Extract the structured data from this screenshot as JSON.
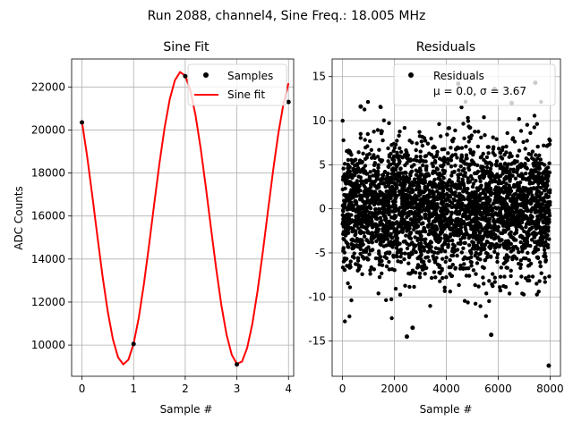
{
  "figure": {
    "suptitle": "Run 2088, channel4, Sine Freq.: 18.005 MHz"
  },
  "chart_data": [
    {
      "type": "line",
      "title": "Sine Fit",
      "xlabel": "Sample #",
      "ylabel": "ADC Counts",
      "xlim": [
        -0.2,
        4.1
      ],
      "ylim": [
        8550,
        23300
      ],
      "xticks": [
        0,
        1,
        2,
        3,
        4
      ],
      "yticks": [
        10000,
        12000,
        14000,
        16000,
        18000,
        20000,
        22000
      ],
      "grid": true,
      "legend": "top-right",
      "series": [
        {
          "name": "Samples",
          "style": "points",
          "color": "#000000",
          "x": [
            0,
            1,
            2,
            3,
            4
          ],
          "y": [
            20350,
            10050,
            22500,
            9100,
            21300
          ]
        },
        {
          "name": "Sine fit",
          "style": "line",
          "color": "#ff0000",
          "model": {
            "offset": 15900,
            "amplitude": 6800,
            "period": 2.22,
            "peak_x": 1.92
          },
          "x_range": [
            0,
            4
          ]
        }
      ]
    },
    {
      "type": "scatter",
      "title": "Residuals",
      "xlabel": "Sample #",
      "ylabel": "",
      "xlim": [
        -400,
        8400
      ],
      "ylim": [
        -19,
        17
      ],
      "xticks": [
        0,
        2000,
        4000,
        6000,
        8000
      ],
      "yticks": [
        -15,
        -10,
        -5,
        0,
        5,
        10,
        15
      ],
      "grid": true,
      "legend": "top-right",
      "series": [
        {
          "name": "Residuals",
          "color": "#000000",
          "n_points": 8000,
          "mean": 0.0,
          "sigma": 3.67,
          "highlighted_points": [
            {
              "x": 7950,
              "y": -17.8
            },
            {
              "x": 2480,
              "y": -14.5
            },
            {
              "x": 5730,
              "y": -14.3
            },
            {
              "x": 2700,
              "y": -13.5
            },
            {
              "x": 4460,
              "y": 14.2
            },
            {
              "x": 5860,
              "y": 13.6
            },
            {
              "x": 7430,
              "y": 14.3
            },
            {
              "x": 700,
              "y": 11.6
            },
            {
              "x": 6520,
              "y": 12.0
            }
          ]
        }
      ],
      "legend_note": "μ = 0.0, σ = 3.67"
    }
  ]
}
